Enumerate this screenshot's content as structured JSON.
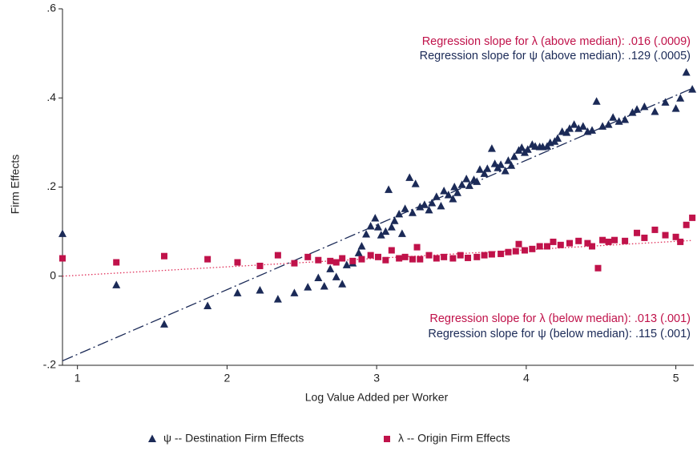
{
  "chart_data": {
    "type": "scatter",
    "x_label": "Log Value Added per Worker",
    "y_label": "Firm Effects",
    "xlim": [
      0.9,
      5.12
    ],
    "ylim": [
      -0.2,
      0.6
    ],
    "xticks": [
      1,
      2,
      3,
      4,
      5
    ],
    "yticks": [
      {
        "value": -0.2,
        "label": "-.2"
      },
      {
        "value": 0,
        "label": "0"
      },
      {
        "value": 0.2,
        "label": ".2"
      },
      {
        "value": 0.4,
        "label": ".4"
      },
      {
        "value": 0.6,
        "label": ".6"
      }
    ],
    "series": [
      {
        "name": "ψ -- Destination Firm Effects",
        "color": "#1b2a57",
        "marker": "triangle",
        "x": [
          0.9,
          1.26,
          1.58,
          1.87,
          2.07,
          2.22,
          2.34,
          2.45,
          2.54,
          2.61,
          2.65,
          2.69,
          2.73,
          2.77,
          2.8,
          2.84,
          2.88,
          2.9,
          2.93,
          2.96,
          2.99,
          3.01,
          3.03,
          3.06,
          3.08,
          3.1,
          3.12,
          3.15,
          3.17,
          3.19,
          3.22,
          3.24,
          3.26,
          3.29,
          3.32,
          3.35,
          3.37,
          3.4,
          3.43,
          3.45,
          3.48,
          3.51,
          3.52,
          3.54,
          3.57,
          3.6,
          3.62,
          3.65,
          3.67,
          3.69,
          3.72,
          3.74,
          3.77,
          3.79,
          3.81,
          3.83,
          3.86,
          3.88,
          3.9,
          3.92,
          3.95,
          3.97,
          3.99,
          4.01,
          4.04,
          4.06,
          4.09,
          4.11,
          4.14,
          4.16,
          4.19,
          4.21,
          4.24,
          4.27,
          4.29,
          4.32,
          4.35,
          4.38,
          4.41,
          4.44,
          4.47,
          4.51,
          4.55,
          4.58,
          4.62,
          4.66,
          4.71,
          4.74,
          4.79,
          4.86,
          4.93,
          5.0,
          5.03,
          5.07,
          5.11
        ],
        "values": [
          0.095,
          -0.02,
          -0.108,
          -0.067,
          -0.038,
          -0.032,
          -0.052,
          -0.038,
          -0.025,
          -0.004,
          -0.023,
          0.016,
          -0.002,
          -0.018,
          0.025,
          0.029,
          0.052,
          0.067,
          0.094,
          0.112,
          0.13,
          0.11,
          0.092,
          0.1,
          0.194,
          0.11,
          0.124,
          0.139,
          0.095,
          0.151,
          0.221,
          0.142,
          0.207,
          0.155,
          0.16,
          0.148,
          0.164,
          0.178,
          0.157,
          0.191,
          0.182,
          0.173,
          0.2,
          0.187,
          0.205,
          0.218,
          0.203,
          0.216,
          0.212,
          0.239,
          0.23,
          0.241,
          0.286,
          0.252,
          0.243,
          0.25,
          0.236,
          0.259,
          0.248,
          0.268,
          0.282,
          0.288,
          0.277,
          0.284,
          0.295,
          0.291,
          0.29,
          0.29,
          0.291,
          0.299,
          0.302,
          0.309,
          0.324,
          0.322,
          0.331,
          0.34,
          0.331,
          0.336,
          0.324,
          0.327,
          0.392,
          0.336,
          0.34,
          0.356,
          0.347,
          0.351,
          0.367,
          0.374,
          0.38,
          0.369,
          0.39,
          0.376,
          0.399,
          0.457,
          0.419
        ]
      },
      {
        "name": "λ -- Origin Firm Effects",
        "color": "#c0124a",
        "marker": "square",
        "x": [
          0.9,
          1.26,
          1.58,
          1.87,
          2.07,
          2.22,
          2.34,
          2.45,
          2.54,
          2.61,
          2.69,
          2.73,
          2.77,
          2.84,
          2.9,
          2.96,
          3.01,
          3.06,
          3.1,
          3.15,
          3.19,
          3.24,
          3.27,
          3.29,
          3.35,
          3.4,
          3.45,
          3.51,
          3.56,
          3.61,
          3.67,
          3.72,
          3.77,
          3.83,
          3.88,
          3.93,
          3.95,
          3.99,
          4.04,
          4.09,
          4.14,
          4.18,
          4.23,
          4.29,
          4.35,
          4.41,
          4.44,
          4.48,
          4.51,
          4.55,
          4.59,
          4.66,
          4.74,
          4.79,
          4.86,
          4.93,
          5.0,
          5.03,
          5.07,
          5.11
        ],
        "values": [
          0.04,
          0.031,
          0.045,
          0.038,
          0.031,
          0.023,
          0.047,
          0.029,
          0.043,
          0.036,
          0.034,
          0.031,
          0.04,
          0.034,
          0.038,
          0.047,
          0.043,
          0.036,
          0.058,
          0.04,
          0.043,
          0.038,
          0.065,
          0.038,
          0.047,
          0.04,
          0.043,
          0.04,
          0.047,
          0.041,
          0.043,
          0.047,
          0.049,
          0.05,
          0.054,
          0.056,
          0.072,
          0.058,
          0.061,
          0.067,
          0.067,
          0.077,
          0.07,
          0.074,
          0.079,
          0.074,
          0.067,
          0.018,
          0.081,
          0.077,
          0.081,
          0.079,
          0.097,
          0.086,
          0.104,
          0.092,
          0.088,
          0.077,
          0.115,
          0.131
        ]
      }
    ],
    "fits": [
      {
        "color": "#1b2a57",
        "dash": "14 4 2 4",
        "x": [
          0.9,
          5.1
        ],
        "values": [
          -0.19,
          0.42
        ]
      },
      {
        "color": "#e0305a",
        "dash": "1.5 2.5",
        "x": [
          0.9,
          5.1
        ],
        "values": [
          0.0,
          0.08
        ]
      }
    ],
    "annotations": [
      {
        "text": "Regression slope for λ (above median): .016 (.0009)",
        "color": "#c0124a"
      },
      {
        "text": "Regression slope for ψ (above median): .129 (.0005)",
        "color": "#1b2a57"
      },
      {
        "text": "Regression slope for λ (below median): .013 (.001)",
        "color": "#c0124a"
      },
      {
        "text": "Regression slope for ψ (below median): .115 (.001)",
        "color": "#1b2a57"
      }
    ]
  }
}
